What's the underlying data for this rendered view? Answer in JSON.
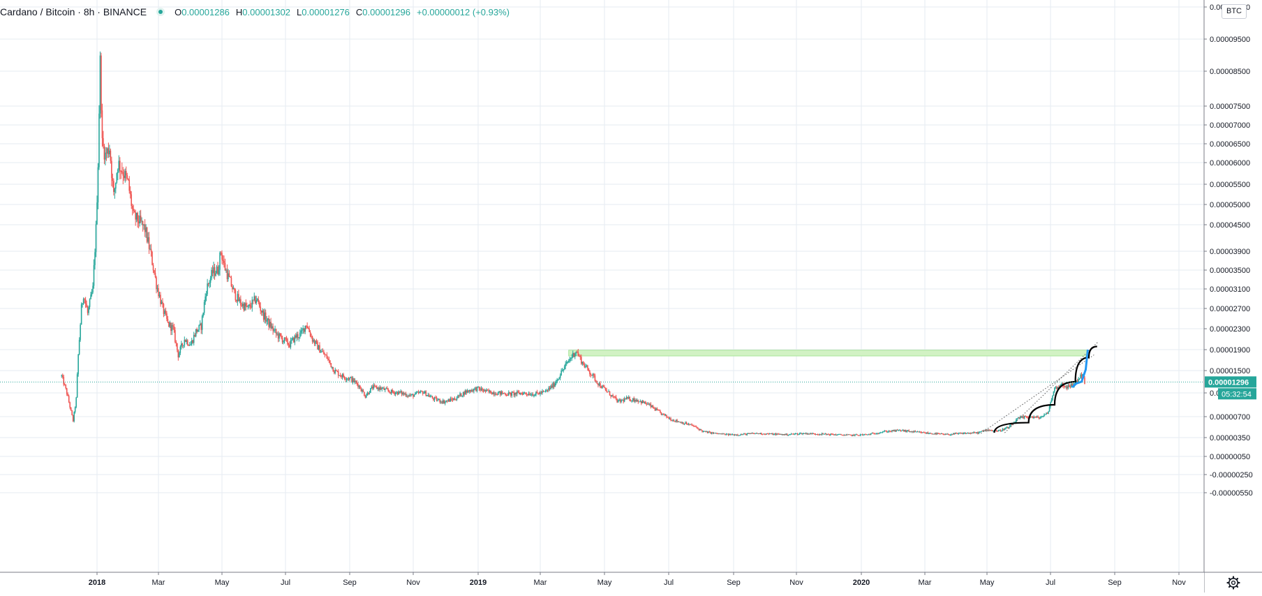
{
  "legend": {
    "symbol": "Cardano / Bitcoin · 8h · BINANCE",
    "open_label": "O",
    "open": "0.00001286",
    "high_label": "H",
    "high": "0.00001302",
    "low_label": "L",
    "low": "0.00001276",
    "close_label": "C",
    "close": "0.00001296",
    "change": "+0.00000012 (+0.93%)",
    "status_icon": "green-dot-icon"
  },
  "currency_label": "BTC",
  "settings_icon": "gear-icon",
  "colors": {
    "up": "#26a69a",
    "down": "#ef5350",
    "grid": "#e6ebf2",
    "price_line": "#26a69a",
    "price_tag_bg": "#26a69a",
    "zone_fill": "#d2f2c4",
    "zone_border": "#a8e59a",
    "curve": "#000000",
    "arrow": "#2196f3"
  },
  "chart_data": {
    "type": "candlestick",
    "title": "Cardano / Bitcoin · 8h · BINANCE",
    "xlabel": "",
    "ylabel": "",
    "y_unit": "BTC",
    "x_ticks": [
      {
        "label": "2018",
        "date": "2018-01-01",
        "bold": true
      },
      {
        "label": "Mar",
        "date": "2018-03-01"
      },
      {
        "label": "May",
        "date": "2018-05-01"
      },
      {
        "label": "Jul",
        "date": "2018-07-01"
      },
      {
        "label": "Sep",
        "date": "2018-09-01"
      },
      {
        "label": "Nov",
        "date": "2018-11-01"
      },
      {
        "label": "2019",
        "date": "2019-01-01",
        "bold": true
      },
      {
        "label": "Mar",
        "date": "2019-03-01"
      },
      {
        "label": "May",
        "date": "2019-05-01"
      },
      {
        "label": "Jul",
        "date": "2019-07-01"
      },
      {
        "label": "Sep",
        "date": "2019-09-01"
      },
      {
        "label": "Nov",
        "date": "2019-11-01"
      },
      {
        "label": "2020",
        "date": "2020-01-01",
        "bold": true
      },
      {
        "label": "Mar",
        "date": "2020-03-01"
      },
      {
        "label": "May",
        "date": "2020-05-01"
      },
      {
        "label": "Jul",
        "date": "2020-07-01"
      },
      {
        "label": "Sep",
        "date": "2020-09-01"
      },
      {
        "label": "Nov",
        "date": "2020-11-01"
      }
    ],
    "y_ticks": [
      "0.00010500",
      "0.00009500",
      "0.00008500",
      "0.00007500",
      "0.00007000",
      "0.00006500",
      "0.00006000",
      "0.00005500",
      "0.00005000",
      "0.00004500",
      "0.00003900",
      "0.00003500",
      "0.00003100",
      "0.00002700",
      "0.00002300",
      "0.00001900",
      "0.00001500",
      "0.00001100",
      "0.00000700",
      "0.00000350",
      "0.00000050",
      "-0.00000250",
      "-0.00000550"
    ],
    "xlim": [
      "2017-10-20",
      "2020-11-20"
    ],
    "last_price": "0.00001296",
    "countdown": "05:32:54",
    "series": [
      {
        "date": "2017-11-28",
        "close": 1.4e-05
      },
      {
        "date": "2017-12-03",
        "close": 1.1e-05
      },
      {
        "date": "2017-12-09",
        "close": 6.3e-06
      },
      {
        "date": "2017-12-12",
        "close": 1e-05
      },
      {
        "date": "2017-12-14",
        "close": 1.8e-05
      },
      {
        "date": "2017-12-17",
        "close": 2.7e-05
      },
      {
        "date": "2017-12-19",
        "close": 3e-05
      },
      {
        "date": "2017-12-23",
        "close": 2.6e-05
      },
      {
        "date": "2017-12-28",
        "close": 3.1e-05
      },
      {
        "date": "2017-12-31",
        "close": 4.4e-05
      },
      {
        "date": "2018-01-02",
        "close": 6e-05
      },
      {
        "date": "2018-01-04",
        "close": 8.8e-05
      },
      {
        "date": "2018-01-06",
        "close": 6.5e-05
      },
      {
        "date": "2018-01-09",
        "close": 6.2e-05
      },
      {
        "date": "2018-01-13",
        "close": 6.4e-05
      },
      {
        "date": "2018-01-17",
        "close": 5.2e-05
      },
      {
        "date": "2018-01-21",
        "close": 6e-05
      },
      {
        "date": "2018-01-26",
        "close": 5.8e-05
      },
      {
        "date": "2018-01-31",
        "close": 5.5e-05
      },
      {
        "date": "2018-02-05",
        "close": 4.7e-05
      },
      {
        "date": "2018-02-10",
        "close": 4.6e-05
      },
      {
        "date": "2018-02-16",
        "close": 4.4e-05
      },
      {
        "date": "2018-02-22",
        "close": 3.8e-05
      },
      {
        "date": "2018-02-27",
        "close": 3.2e-05
      },
      {
        "date": "2018-03-05",
        "close": 2.7e-05
      },
      {
        "date": "2018-03-10",
        "close": 2.4e-05
      },
      {
        "date": "2018-03-15",
        "close": 2.3e-05
      },
      {
        "date": "2018-03-20",
        "close": 1.8e-05
      },
      {
        "date": "2018-03-26",
        "close": 2.1e-05
      },
      {
        "date": "2018-04-01",
        "close": 2e-05
      },
      {
        "date": "2018-04-06",
        "close": 2.25e-05
      },
      {
        "date": "2018-04-11",
        "close": 2.35e-05
      },
      {
        "date": "2018-04-16",
        "close": 3.1e-05
      },
      {
        "date": "2018-04-22",
        "close": 3.45e-05
      },
      {
        "date": "2018-04-27",
        "close": 3.5e-05
      },
      {
        "date": "2018-04-30",
        "close": 3.9e-05
      },
      {
        "date": "2018-05-03",
        "close": 3.6e-05
      },
      {
        "date": "2018-05-08",
        "close": 3.3e-05
      },
      {
        "date": "2018-05-13",
        "close": 3e-05
      },
      {
        "date": "2018-05-19",
        "close": 2.8e-05
      },
      {
        "date": "2018-05-26",
        "close": 2.7e-05
      },
      {
        "date": "2018-06-03",
        "close": 2.9e-05
      },
      {
        "date": "2018-06-09",
        "close": 2.6e-05
      },
      {
        "date": "2018-06-15",
        "close": 2.4e-05
      },
      {
        "date": "2018-06-22",
        "close": 2.2e-05
      },
      {
        "date": "2018-06-28",
        "close": 2.1e-05
      },
      {
        "date": "2018-07-05",
        "close": 2e-05
      },
      {
        "date": "2018-07-11",
        "close": 2.15e-05
      },
      {
        "date": "2018-07-16",
        "close": 2.2e-05
      },
      {
        "date": "2018-07-21",
        "close": 2.4e-05
      },
      {
        "date": "2018-07-27",
        "close": 2.1e-05
      },
      {
        "date": "2018-08-03",
        "close": 1.9e-05
      },
      {
        "date": "2018-08-10",
        "close": 1.75e-05
      },
      {
        "date": "2018-08-17",
        "close": 1.5e-05
      },
      {
        "date": "2018-08-25",
        "close": 1.4e-05
      },
      {
        "date": "2018-09-02",
        "close": 1.35e-05
      },
      {
        "date": "2018-09-09",
        "close": 1.25e-05
      },
      {
        "date": "2018-09-16",
        "close": 1.05e-05
      },
      {
        "date": "2018-09-23",
        "close": 1.2e-05
      },
      {
        "date": "2018-10-01",
        "close": 1.18e-05
      },
      {
        "date": "2018-10-10",
        "close": 1.12e-05
      },
      {
        "date": "2018-10-20",
        "close": 1.1e-05
      },
      {
        "date": "2018-10-30",
        "close": 1.05e-05
      },
      {
        "date": "2018-11-10",
        "close": 1.12e-05
      },
      {
        "date": "2018-11-20",
        "close": 1e-05
      },
      {
        "date": "2018-11-30",
        "close": 9.5e-06
      },
      {
        "date": "2018-12-10",
        "close": 1e-05
      },
      {
        "date": "2018-12-20",
        "close": 1.12e-05
      },
      {
        "date": "2018-12-31",
        "close": 1.18e-05
      },
      {
        "date": "2019-01-10",
        "close": 1.12e-05
      },
      {
        "date": "2019-01-20",
        "close": 1.1e-05
      },
      {
        "date": "2019-02-01",
        "close": 1.08e-05
      },
      {
        "date": "2019-02-12",
        "close": 1.1e-05
      },
      {
        "date": "2019-02-24",
        "close": 1.08e-05
      },
      {
        "date": "2019-03-06",
        "close": 1.12e-05
      },
      {
        "date": "2019-03-14",
        "close": 1.25e-05
      },
      {
        "date": "2019-03-22",
        "close": 1.5e-05
      },
      {
        "date": "2019-03-29",
        "close": 1.72e-05
      },
      {
        "date": "2019-04-04",
        "close": 1.88e-05
      },
      {
        "date": "2019-04-10",
        "close": 1.65e-05
      },
      {
        "date": "2019-04-18",
        "close": 1.45e-05
      },
      {
        "date": "2019-04-26",
        "close": 1.25e-05
      },
      {
        "date": "2019-05-05",
        "close": 1.1e-05
      },
      {
        "date": "2019-05-14",
        "close": 9.5e-06
      },
      {
        "date": "2019-05-22",
        "close": 1e-05
      },
      {
        "date": "2019-06-01",
        "close": 9.8e-06
      },
      {
        "date": "2019-06-12",
        "close": 9e-06
      },
      {
        "date": "2019-06-24",
        "close": 7.5e-06
      },
      {
        "date": "2019-07-04",
        "close": 6.5e-06
      },
      {
        "date": "2019-07-14",
        "close": 6e-06
      },
      {
        "date": "2019-07-24",
        "close": 5.5e-06
      },
      {
        "date": "2019-08-03",
        "close": 4.5e-06
      },
      {
        "date": "2019-08-14",
        "close": 4.2e-06
      },
      {
        "date": "2019-08-26",
        "close": 4e-06
      },
      {
        "date": "2019-09-07",
        "close": 4e-06
      },
      {
        "date": "2019-09-22",
        "close": 4.2e-06
      },
      {
        "date": "2019-10-07",
        "close": 4.1e-06
      },
      {
        "date": "2019-10-22",
        "close": 4e-06
      },
      {
        "date": "2019-11-07",
        "close": 4.2e-06
      },
      {
        "date": "2019-11-22",
        "close": 4.1e-06
      },
      {
        "date": "2019-12-07",
        "close": 4e-06
      },
      {
        "date": "2019-12-22",
        "close": 3.9e-06
      },
      {
        "date": "2020-01-07",
        "close": 4e-06
      },
      {
        "date": "2020-01-22",
        "close": 4.5e-06
      },
      {
        "date": "2020-02-07",
        "close": 4.7e-06
      },
      {
        "date": "2020-02-22",
        "close": 4.4e-06
      },
      {
        "date": "2020-03-07",
        "close": 4.2e-06
      },
      {
        "date": "2020-03-22",
        "close": 4e-06
      },
      {
        "date": "2020-04-07",
        "close": 4.2e-06
      },
      {
        "date": "2020-04-22",
        "close": 4.3e-06
      },
      {
        "date": "2020-05-01",
        "close": 4.8e-06
      },
      {
        "date": "2020-05-12",
        "close": 4.6e-06
      },
      {
        "date": "2020-05-22",
        "close": 5.2e-06
      },
      {
        "date": "2020-05-31",
        "close": 6.7e-06
      },
      {
        "date": "2020-06-10",
        "close": 7e-06
      },
      {
        "date": "2020-06-20",
        "close": 6.8e-06
      },
      {
        "date": "2020-06-28",
        "close": 7.5e-06
      },
      {
        "date": "2020-07-05",
        "close": 1.18e-05
      },
      {
        "date": "2020-07-12",
        "close": 1.25e-05
      },
      {
        "date": "2020-07-19",
        "close": 1.2e-05
      },
      {
        "date": "2020-07-26",
        "close": 1.3e-05
      },
      {
        "date": "2020-08-01",
        "close": 1.45e-05
      },
      {
        "date": "2020-08-03",
        "close": 1.29e-05
      }
    ]
  },
  "drawings": {
    "resistance_zone": {
      "from_date": "2019-03-28",
      "to_date": "2020-08-06",
      "low": 1.78e-05,
      "high": 1.89e-05
    },
    "parabolic_curve": [
      {
        "date": "2020-05-08",
        "price": 4.3e-06
      },
      {
        "date": "2020-06-10",
        "price": 6e-06
      },
      {
        "date": "2020-07-05",
        "price": 9e-06
      },
      {
        "date": "2020-07-25",
        "price": 1.3e-05
      },
      {
        "date": "2020-08-07",
        "price": 1.75e-05
      },
      {
        "date": "2020-08-15",
        "price": 1.96e-05
      }
    ],
    "dotted_trendlines": [
      {
        "from": {
          "date": "2020-04-25",
          "price": 4.2e-06
        },
        "to": {
          "date": "2020-08-12",
          "price": 1.8e-05
        }
      },
      {
        "from": {
          "date": "2020-05-18",
          "price": 4.3e-06
        },
        "to": {
          "date": "2020-08-16",
          "price": 2.05e-05
        }
      }
    ],
    "projection_arrow": [
      {
        "date": "2020-07-22",
        "price": 1.2e-05
      },
      {
        "date": "2020-07-26",
        "price": 1.27e-05
      },
      {
        "date": "2020-07-31",
        "price": 1.3e-05
      },
      {
        "date": "2020-08-04",
        "price": 1.52e-05
      },
      {
        "date": "2020-08-06",
        "price": 1.9e-05
      }
    ]
  }
}
